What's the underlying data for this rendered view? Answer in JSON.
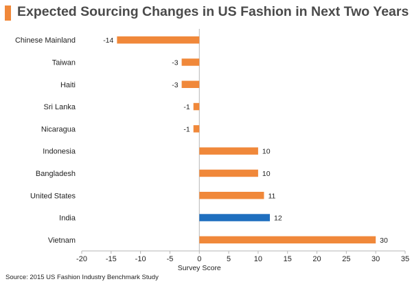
{
  "title": "Expected Sourcing Changes in US Fashion in Next Two Years",
  "source": "Source: 2015 US Fashion Industry Benchmark Study",
  "colors": {
    "bar": "#f0883a",
    "highlight": "#1f6fbf",
    "accent": "#f0883a"
  },
  "chart_data": {
    "type": "bar",
    "orientation": "horizontal",
    "categories": [
      "Chinese Mainland",
      "Taiwan",
      "Haiti",
      "Sri Lanka",
      "Nicaragua",
      "Indonesia",
      "Bangladesh",
      "United States",
      "India",
      "Vietnam"
    ],
    "values": [
      -14,
      -3,
      -3,
      -1,
      -1,
      10,
      10,
      11,
      12,
      30
    ],
    "data_labels": [
      "-14",
      "-3",
      "-3",
      "-1",
      "-1",
      "10",
      "10",
      "11",
      "12",
      "30"
    ],
    "highlight_category": "India",
    "xlabel": "Survey Score",
    "ylabel": "",
    "xlim": [
      -20,
      35
    ],
    "xticks": [
      -20,
      -15,
      -10,
      -5,
      0,
      5,
      10,
      15,
      20,
      25,
      30,
      35
    ],
    "xtick_labels": [
      "-20",
      "-15",
      "-10",
      "-5",
      "0",
      "5",
      "10",
      "15",
      "20",
      "25",
      "30",
      "35"
    ],
    "grid": false,
    "legend": "none"
  }
}
